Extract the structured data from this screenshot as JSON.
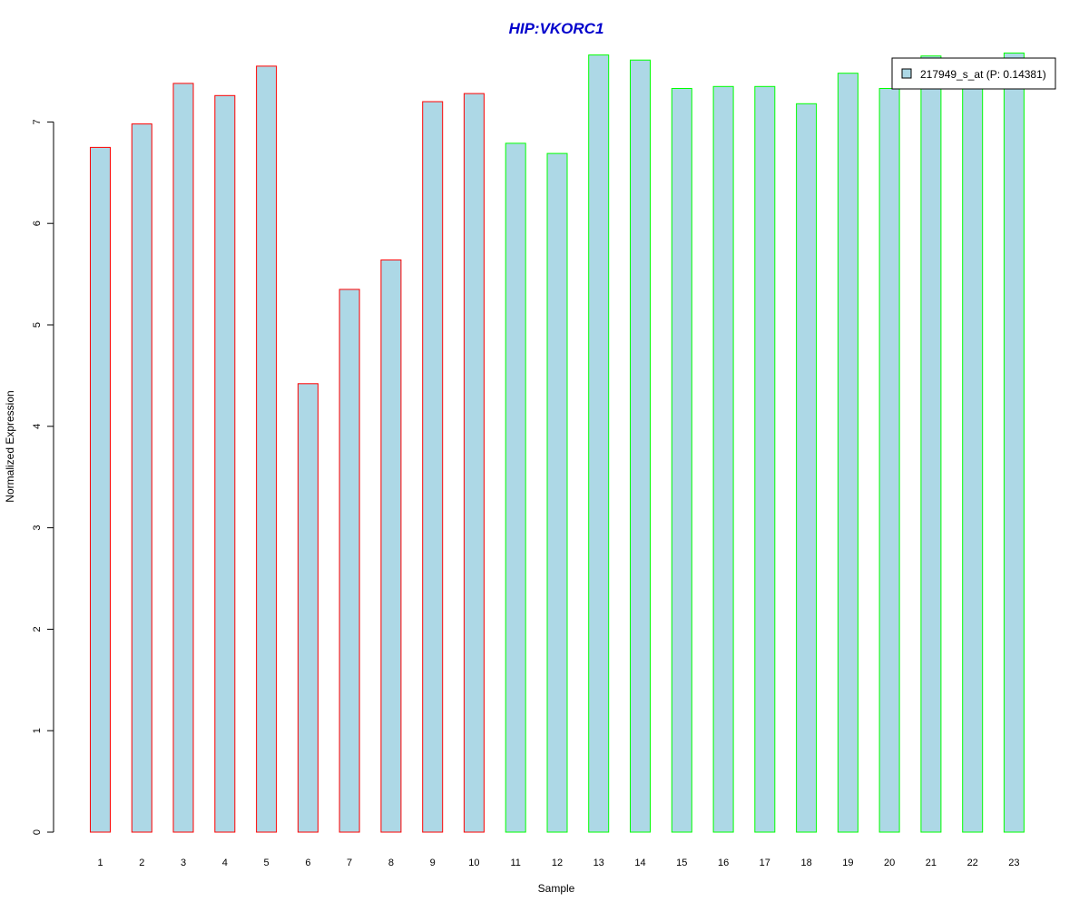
{
  "chart_data": {
    "type": "bar",
    "title": "HIP:VKORC1",
    "xlabel": "Sample",
    "ylabel": "Normalized Expression",
    "categories": [
      "1",
      "2",
      "3",
      "4",
      "5",
      "6",
      "7",
      "8",
      "9",
      "10",
      "11",
      "12",
      "13",
      "14",
      "15",
      "16",
      "17",
      "18",
      "19",
      "20",
      "21",
      "22",
      "23"
    ],
    "series": [
      {
        "name": "217949_s_at (P: 0.14381)",
        "values": [
          6.75,
          6.98,
          7.38,
          7.26,
          7.55,
          4.42,
          5.35,
          5.64,
          7.2,
          7.28,
          6.79,
          6.69,
          7.66,
          7.61,
          7.33,
          7.35,
          7.35,
          7.18,
          7.48,
          7.33,
          7.65,
          7.63,
          7.68
        ]
      }
    ],
    "ylim": [
      0,
      7.7
    ],
    "yticks": [
      "0",
      "1",
      "2",
      "3",
      "4",
      "5",
      "6",
      "7"
    ],
    "grid": false,
    "legend_position": "top-right",
    "colors": {
      "bar_fill": "#add8e6",
      "group1_border": "#ff0000",
      "group2_border": "#00ff00",
      "title": "#0000cc",
      "axis": "#000000"
    },
    "border_groups": [
      "1",
      "1",
      "1",
      "1",
      "1",
      "1",
      "1",
      "1",
      "1",
      "1",
      "2",
      "2",
      "2",
      "2",
      "2",
      "2",
      "2",
      "2",
      "2",
      "2",
      "2",
      "2",
      "2"
    ]
  }
}
